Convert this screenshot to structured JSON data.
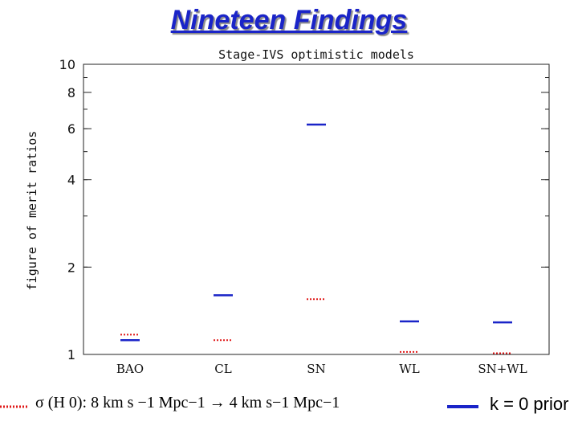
{
  "title": "Nineteen Findings",
  "chart_data": {
    "type": "scatter",
    "title": "Stage-IVS optimistic models",
    "xlabel": "",
    "ylabel": "figure of merit ratios",
    "y_scale": "log",
    "ylim": [
      1,
      10
    ],
    "y_ticks": [
      1,
      2,
      4,
      6,
      8,
      10
    ],
    "grid": false,
    "categories": [
      "BAO",
      "CL",
      "SN",
      "WL",
      "SN+WL"
    ],
    "series": [
      {
        "style": "dotted",
        "color": "#e01818",
        "values": [
          1.17,
          1.12,
          1.55,
          1.02,
          1.01
        ]
      },
      {
        "style": "solid",
        "color": "#1a24c8",
        "values": [
          1.12,
          1.6,
          6.2,
          1.3,
          1.29
        ]
      }
    ]
  },
  "legend": {
    "left_label": "σ (H 0): 8 km s −1 Mpc−1 → 4 km s−1 Mpc−1",
    "right_label": "k = 0 prior",
    "left_color": "#e01818",
    "right_color": "#1a24c8"
  }
}
